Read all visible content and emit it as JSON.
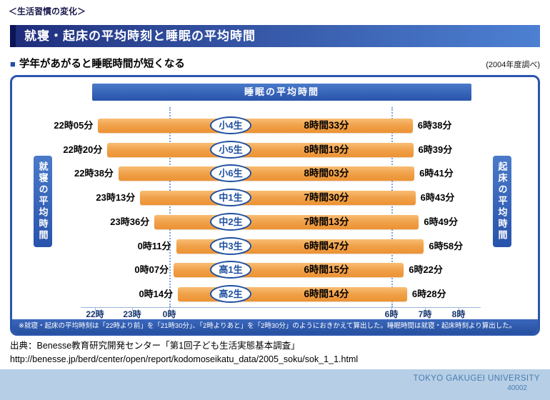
{
  "header": {
    "category": "＜生活習慣の変化＞",
    "title": "就寝・起床の平均時刻と睡眠の平均時間",
    "section_marker": "■",
    "subtitle": "学年があがると睡眠時間が短くなる",
    "survey_note": "(2004年度調べ)"
  },
  "chart_data": {
    "type": "bar",
    "orientation": "horizontal",
    "title": "睡眠の平均時間",
    "left_axis_label": "就寝の平均時間",
    "right_axis_label": "起床の平均時間",
    "rows": [
      {
        "grade": "小4生",
        "bedtime": "22時05分",
        "bed_24h": "22:05",
        "waketime": "6時38分",
        "wake_24h": "6:38",
        "duration": "8時間33分"
      },
      {
        "grade": "小5生",
        "bedtime": "22時20分",
        "bed_24h": "22:20",
        "waketime": "6時39分",
        "wake_24h": "6:39",
        "duration": "8時間19分"
      },
      {
        "grade": "小6生",
        "bedtime": "22時38分",
        "bed_24h": "22:38",
        "waketime": "6時41分",
        "wake_24h": "6:41",
        "duration": "8時間03分"
      },
      {
        "grade": "中1生",
        "bedtime": "23時13分",
        "bed_24h": "23:13",
        "waketime": "6時43分",
        "wake_24h": "6:43",
        "duration": "7時間30分"
      },
      {
        "grade": "中2生",
        "bedtime": "23時36分",
        "bed_24h": "23:36",
        "waketime": "6時49分",
        "wake_24h": "6:49",
        "duration": "7時間13分"
      },
      {
        "grade": "中3生",
        "bedtime": "0時11分",
        "bed_24h": "0:11",
        "waketime": "6時58分",
        "wake_24h": "6:58",
        "duration": "6時間47分"
      },
      {
        "grade": "高1生",
        "bedtime": "0時07分",
        "bed_24h": "0:07",
        "waketime": "6時22分",
        "wake_24h": "6:22",
        "duration": "6時間15分"
      },
      {
        "grade": "高2生",
        "bedtime": "0時14分",
        "bed_24h": "0:14",
        "waketime": "6時28分",
        "wake_24h": "6:28",
        "duration": "6時間14分"
      }
    ],
    "x_ticks": [
      {
        "label": "22時",
        "time": "22:00",
        "axis": "bed",
        "dotted": false
      },
      {
        "label": "23時",
        "time": "23:00",
        "axis": "bed",
        "dotted": false
      },
      {
        "label": "0時",
        "time": "0:00",
        "axis": "bed",
        "dotted": true
      },
      {
        "label": "6時",
        "time": "6:00",
        "axis": "wake",
        "dotted": true
      },
      {
        "label": "7時",
        "time": "7:00",
        "axis": "wake",
        "dotted": false
      },
      {
        "label": "8時",
        "time": "8:00",
        "axis": "wake",
        "dotted": false
      }
    ],
    "axis_break": "0:30-6:00 compressed",
    "footnote": "※就寝・起床の平均時刻は「22時より前」を「21時30分」、「2時よりあと」を「2時30分」のようにおきかえて算出した。睡眠時間は就寝・起床時刻より算出した。",
    "colors": {
      "bar_orange": "#f09a3e",
      "accent_blue": "#2b55ad"
    }
  },
  "source": {
    "line1": "出典：Benesse教育研究開発センター「第1回子ども生活実態基本調査」",
    "line2": "http://benesse.jp/berd/center/open/report/kodomoseikatu_data/2005_soku/sok_1_1.html"
  },
  "footer": {
    "university": "TOKYO GAKUGEI UNIVERSITY",
    "code": "40002"
  }
}
